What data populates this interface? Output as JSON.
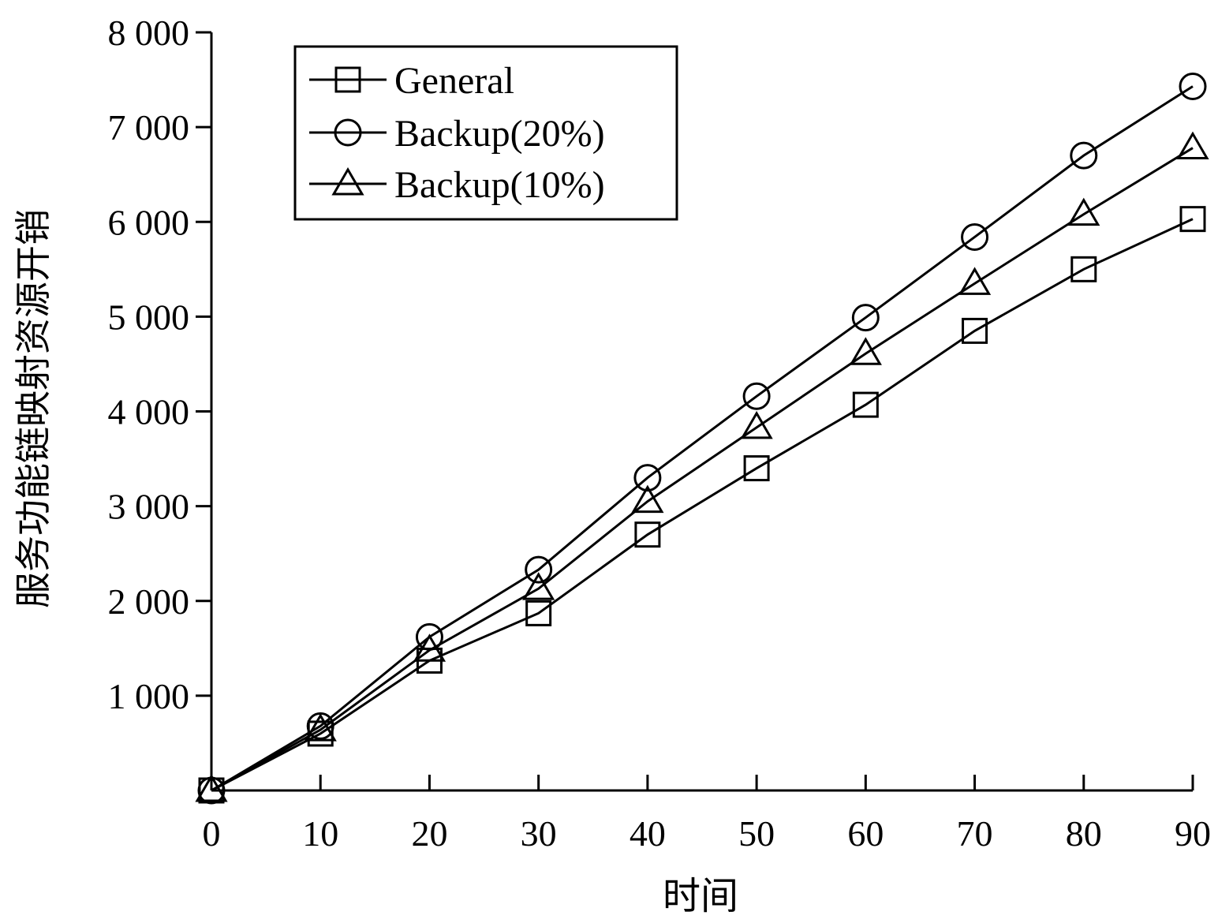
{
  "chart_data": {
    "type": "line",
    "title": "",
    "xlabel": "时间",
    "ylabel": "服务功能链映射资源开销",
    "xlim": [
      0,
      90
    ],
    "ylim": [
      0,
      8000
    ],
    "xticks": [
      0,
      10,
      20,
      30,
      40,
      50,
      60,
      70,
      80,
      90
    ],
    "xtick_labels": [
      "0",
      "10",
      "20",
      "30",
      "40",
      "50",
      "60",
      "70",
      "80",
      "90"
    ],
    "yticks": [
      1000,
      2000,
      3000,
      4000,
      5000,
      6000,
      7000,
      8000
    ],
    "ytick_labels": [
      "1 000",
      "2 000",
      "3 000",
      "4 000",
      "5 000",
      "6 000",
      "7 000",
      "8 000"
    ],
    "grid": false,
    "legend_position": "top-left",
    "series": [
      {
        "name": "General",
        "marker": "square",
        "color": "#000000",
        "x": [
          0,
          10,
          20,
          30,
          40,
          50,
          60,
          70,
          80,
          90
        ],
        "y": [
          0,
          600,
          1370,
          1870,
          2700,
          3400,
          4070,
          4850,
          5500,
          6030
        ]
      },
      {
        "name": "Backup(20%)",
        "marker": "circle",
        "color": "#000000",
        "x": [
          0,
          10,
          20,
          30,
          40,
          50,
          60,
          70,
          80,
          90
        ],
        "y": [
          0,
          680,
          1620,
          2330,
          3300,
          4160,
          4990,
          5840,
          6700,
          7430
        ]
      },
      {
        "name": "Backup(10%)",
        "marker": "triangle",
        "color": "#000000",
        "x": [
          0,
          10,
          20,
          30,
          40,
          50,
          60,
          70,
          80,
          90
        ],
        "y": [
          0,
          640,
          1480,
          2130,
          3050,
          3830,
          4610,
          5350,
          6080,
          6780
        ]
      }
    ]
  }
}
